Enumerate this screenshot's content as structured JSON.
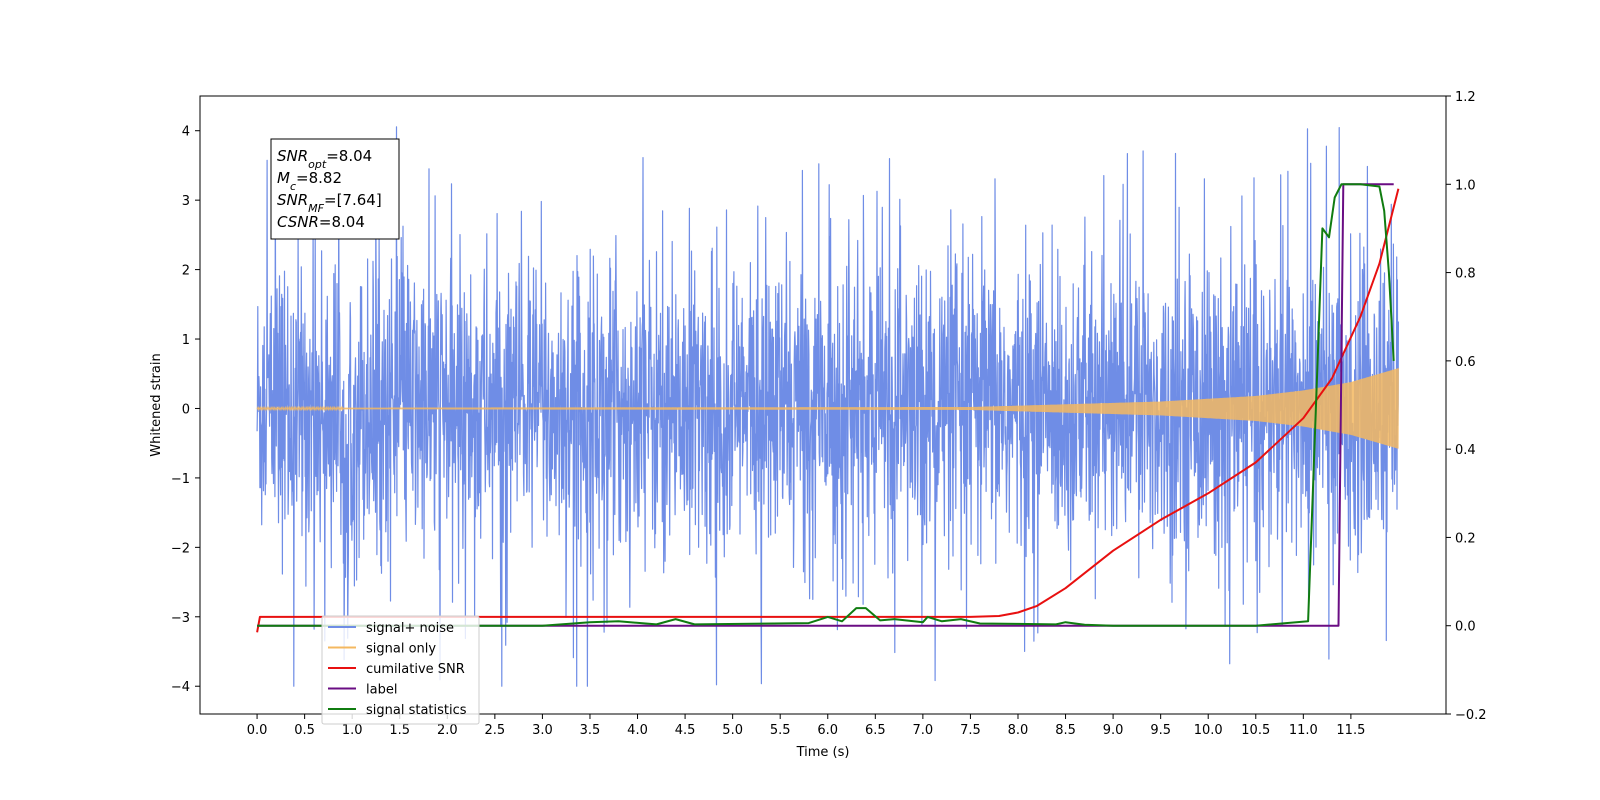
{
  "chart_data": {
    "type": "line",
    "title": "",
    "xlabel": "Time (s)",
    "ylabel": "Whitened strain",
    "xlim": [
      -0.6,
      12.5
    ],
    "ylim": [
      -4.4,
      4.5
    ],
    "y2lim": [
      -0.2,
      1.2
    ],
    "x_ticks": [
      "0.0",
      "0.5",
      "1.0",
      "1.5",
      "2.0",
      "2.5",
      "3.0",
      "3.5",
      "4.0",
      "4.5",
      "5.0",
      "5.5",
      "6.0",
      "6.5",
      "7.0",
      "7.5",
      "8.0",
      "8.5",
      "9.0",
      "9.5",
      "10.0",
      "10.5",
      "11.0",
      "11.5"
    ],
    "y_ticks": [
      "4",
      "3",
      "2",
      "1",
      "0",
      "−1",
      "−2",
      "−3",
      "−4"
    ],
    "y2_ticks": [
      "1.2",
      "1.0",
      "0.8",
      "0.6",
      "0.4",
      "0.2",
      "0.0",
      "−0.2"
    ],
    "grid": false,
    "legend_position": "lower-left",
    "annotation": {
      "lines": [
        {
          "sym": "SNR",
          "sub": "opt",
          "val": "=8.04"
        },
        {
          "sym": "M",
          "sub": "c",
          "val": "=8.82"
        },
        {
          "sym": "SNR",
          "sub": "MF",
          "val": "=[7.64]"
        },
        {
          "sym": "CSNR",
          "sub": "",
          "val": "=8.04"
        }
      ]
    },
    "series": [
      {
        "name": "signal+ noise",
        "axis": "left",
        "color": "#6f8de6",
        "kind": "noise",
        "x_range": [
          0.0,
          12.0
        ],
        "typical_amplitude": 1.7,
        "peak_max": 4.1,
        "peak_min": -4.0
      },
      {
        "name": "signal only",
        "axis": "left",
        "color": "#f4b860",
        "kind": "chirp",
        "x_range": [
          0.0,
          12.0
        ],
        "envelope": {
          "x": [
            0.0,
            7.5,
            8.5,
            9.5,
            10.5,
            11.0,
            11.5,
            12.0
          ],
          "y": [
            0.01,
            0.02,
            0.06,
            0.1,
            0.18,
            0.26,
            0.38,
            0.58
          ]
        }
      },
      {
        "name": "cumilative SNR",
        "axis": "right",
        "color": "#e81010",
        "x": [
          0.0,
          0.03,
          2.0,
          5.0,
          7.5,
          7.8,
          8.0,
          8.2,
          8.5,
          9.0,
          9.5,
          10.0,
          10.5,
          11.0,
          11.3,
          11.6,
          11.8,
          12.0
        ],
        "y": [
          -0.015,
          0.02,
          0.02,
          0.02,
          0.02,
          0.022,
          0.03,
          0.045,
          0.085,
          0.17,
          0.24,
          0.3,
          0.37,
          0.47,
          0.56,
          0.7,
          0.82,
          0.99
        ]
      },
      {
        "name": "label",
        "axis": "right",
        "color": "#6a0d83",
        "x": [
          0.0,
          11.37,
          11.42,
          11.95
        ],
        "y": [
          0.0,
          0.0,
          1.0,
          1.0
        ]
      },
      {
        "name": "signal statistics",
        "axis": "right",
        "color": "#107c10",
        "x": [
          0.0,
          3.0,
          3.5,
          3.8,
          4.2,
          4.4,
          4.6,
          5.8,
          6.0,
          6.15,
          6.3,
          6.4,
          6.55,
          6.7,
          7.0,
          7.05,
          7.2,
          7.4,
          7.6,
          8.0,
          8.4,
          8.5,
          8.7,
          9.0,
          10.5,
          11.05,
          11.1,
          11.2,
          11.27,
          11.33,
          11.4,
          11.5,
          11.6,
          11.8,
          11.85,
          11.9,
          11.95
        ],
        "y": [
          0.0,
          0.0,
          0.008,
          0.01,
          0.003,
          0.015,
          0.003,
          0.006,
          0.02,
          0.01,
          0.04,
          0.04,
          0.012,
          0.015,
          0.008,
          0.02,
          0.01,
          0.015,
          0.005,
          0.004,
          0.003,
          0.008,
          0.002,
          0.0,
          0.0,
          0.01,
          0.3,
          0.9,
          0.88,
          0.97,
          1.0,
          1.0,
          1.0,
          0.995,
          0.94,
          0.8,
          0.6
        ]
      }
    ],
    "legend_entries": [
      {
        "label": "signal+ noise",
        "color": "#6f8de6"
      },
      {
        "label": "signal only",
        "color": "#f4b860"
      },
      {
        "label": "cumilative SNR",
        "color": "#e81010"
      },
      {
        "label": "label",
        "color": "#6a0d83"
      },
      {
        "label": "signal statistics",
        "color": "#107c10"
      }
    ]
  }
}
